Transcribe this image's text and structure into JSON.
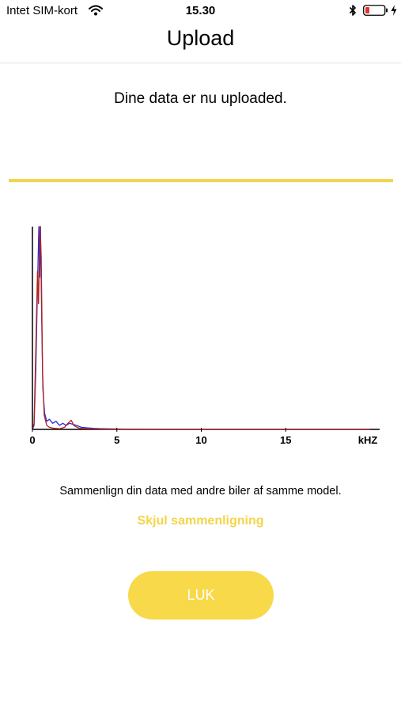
{
  "status_bar": {
    "carrier": "Intet SIM-kort",
    "time": "15.30",
    "icons": [
      "wifi-icon",
      "bluetooth-icon",
      "battery-icon",
      "charging-icon"
    ],
    "battery_color": "#e5322d"
  },
  "nav": {
    "title": "Upload"
  },
  "upload": {
    "message": "Dine data er nu uploaded."
  },
  "colors": {
    "accent": "#f2d54a",
    "series_blue": "#2a2ae6",
    "series_red": "#b02418"
  },
  "chart_data": {
    "type": "line",
    "title": "",
    "xlabel": "kHZ",
    "ylabel": "",
    "xlim": [
      0,
      20
    ],
    "ylim": [
      0,
      1
    ],
    "xticks": [
      0,
      5,
      10,
      15
    ],
    "tick_labels": [
      "0",
      "5",
      "10",
      "15",
      "kHZ"
    ],
    "grid": false,
    "legend": "none",
    "series": [
      {
        "color": "#2a2ae6",
        "points": [
          [
            0,
            0
          ],
          [
            0.1,
            0.02
          ],
          [
            0.2,
            0.3
          ],
          [
            0.3,
            0.7
          ],
          [
            0.38,
            1.0
          ],
          [
            0.43,
            0.75
          ],
          [
            0.48,
            1.0
          ],
          [
            0.55,
            0.55
          ],
          [
            0.62,
            0.2
          ],
          [
            0.72,
            0.08
          ],
          [
            0.85,
            0.04
          ],
          [
            1.0,
            0.05
          ],
          [
            1.2,
            0.03
          ],
          [
            1.4,
            0.04
          ],
          [
            1.6,
            0.02
          ],
          [
            1.8,
            0.03
          ],
          [
            2.0,
            0.02
          ],
          [
            2.2,
            0.03
          ],
          [
            2.4,
            0.025
          ],
          [
            2.6,
            0.02
          ],
          [
            2.9,
            0.01
          ],
          [
            3.2,
            0.008
          ],
          [
            3.6,
            0.005
          ],
          [
            4.2,
            0.003
          ],
          [
            5.5,
            0.001
          ],
          [
            8,
            0
          ],
          [
            20,
            0
          ]
        ]
      },
      {
        "color": "#b02418",
        "points": [
          [
            0,
            0
          ],
          [
            0.1,
            0.03
          ],
          [
            0.2,
            0.4
          ],
          [
            0.3,
            0.78
          ],
          [
            0.36,
            0.62
          ],
          [
            0.45,
            1.0
          ],
          [
            0.52,
            0.85
          ],
          [
            0.6,
            0.28
          ],
          [
            0.7,
            0.07
          ],
          [
            0.85,
            0.02
          ],
          [
            1.0,
            0.01
          ],
          [
            1.3,
            0.005
          ],
          [
            1.6,
            0.003
          ],
          [
            1.9,
            0.01
          ],
          [
            2.1,
            0.03
          ],
          [
            2.3,
            0.045
          ],
          [
            2.45,
            0.02
          ],
          [
            2.6,
            0.012
          ],
          [
            2.8,
            0.005
          ],
          [
            3.2,
            0.003
          ],
          [
            3.8,
            0.002
          ],
          [
            4.5,
            0.001
          ],
          [
            6,
            0
          ],
          [
            20,
            0
          ]
        ]
      }
    ]
  },
  "compare": {
    "text": "Sammenlign din data med andre biler af samme model.",
    "toggle_label": "Skjul sammenligning"
  },
  "close_button": {
    "label": "LUK"
  }
}
